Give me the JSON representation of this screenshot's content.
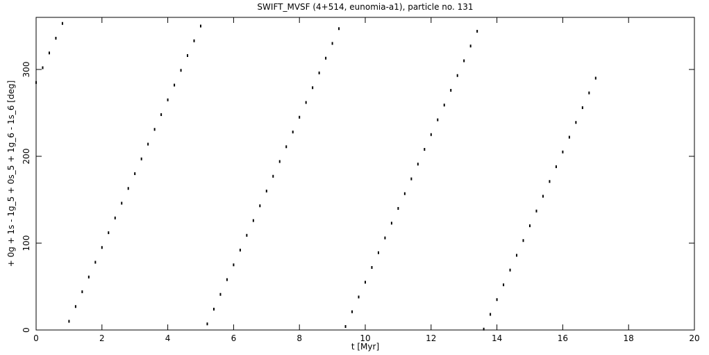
{
  "chart_data": {
    "type": "scatter",
    "title": "SWIFT_MVSF (4+514, eunomia-a1), particle no. 131",
    "x_label": "t [Myr]",
    "y_label": "+ 0g + 1s - 1g_5 + 0s_5 + 1g_6 - 1s_6 [deg]",
    "color": "#000000",
    "xlim": [
      0,
      20
    ],
    "xticks": [
      0,
      2,
      4,
      6,
      8,
      10,
      12,
      14,
      16,
      18,
      20
    ],
    "ylim": [
      0,
      360
    ],
    "yticks": [
      0,
      100,
      200,
      300
    ],
    "x": [
      0,
      0.2,
      0.4,
      0.6,
      0.8,
      1,
      1.2,
      1.4,
      1.6,
      1.8,
      2,
      2.2,
      2.4,
      2.6,
      2.8,
      3,
      3.2,
      3.4,
      3.6,
      3.8,
      4,
      4.2,
      4.4,
      4.6,
      4.8,
      5,
      5.2,
      5.4,
      5.6,
      5.8,
      6,
      6.2,
      6.4,
      6.6,
      6.8,
      7,
      7.2,
      7.4,
      7.6,
      7.8,
      8,
      8.2,
      8.4,
      8.6,
      8.8,
      9,
      9.2,
      9.4,
      9.6,
      9.8,
      10,
      10.2,
      10.4,
      10.6,
      10.8,
      11,
      11.2,
      11.4,
      11.6,
      11.8,
      12,
      12.2,
      12.4,
      12.6,
      12.8,
      13,
      13.2,
      13.4,
      13.6,
      13.8,
      14,
      14.2,
      14.4,
      14.6,
      14.8,
      15,
      15.2,
      15.4,
      15.6,
      15.8,
      16,
      16.2,
      16.4,
      16.6,
      16.8,
      17
    ],
    "values": [
      285,
      302,
      319,
      336,
      353,
      10,
      27,
      44,
      61,
      78,
      95,
      112,
      129,
      146,
      163,
      180,
      197,
      214,
      231,
      248,
      265,
      282,
      299,
      316,
      333,
      350,
      7,
      24,
      41,
      58,
      75,
      92,
      109,
      126,
      143,
      160,
      177,
      194,
      211,
      228,
      245,
      262,
      279,
      296,
      313,
      330,
      347,
      4,
      21,
      38,
      55,
      72,
      89,
      106,
      123,
      140,
      157,
      174,
      191,
      208,
      225,
      242,
      259,
      276,
      293,
      310,
      327,
      344,
      1,
      18,
      35,
      52,
      69,
      86,
      103,
      120,
      137,
      154,
      171,
      188,
      205,
      222,
      239,
      256,
      273,
      290
    ]
  }
}
